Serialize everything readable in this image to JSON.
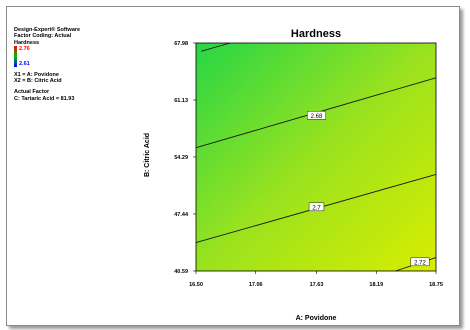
{
  "legend": {
    "lines": [
      "Design-Expert® Software",
      "Factor Coding: Actual",
      "Hardness"
    ],
    "high": "2.76",
    "low": "2.61",
    "factors": [
      "X1 = A: Povidone",
      "X2 = B: Citric Acid"
    ],
    "actual_title": "Actual Factor",
    "actual_value": "C: Tartaric Acid = 81.93"
  },
  "colors": {
    "top_left": "#26d646",
    "bottom_right": "#d9ed00",
    "mid": "#9ae21e"
  },
  "chart_data": {
    "type": "contour",
    "title": "Hardness",
    "xlabel": "A: Povidone",
    "ylabel": "B: Citric Acid",
    "xlim": [
      16.5,
      18.75
    ],
    "ylim": [
      40.59,
      67.98
    ],
    "x_ticks": [
      "16.50",
      "17.06",
      "17.63",
      "18.19",
      "18.75"
    ],
    "y_ticks": [
      "40.59",
      "47.44",
      "54.29",
      "61.13",
      "67.98"
    ],
    "x_tick_values": [
      16.5,
      17.06,
      17.63,
      18.19,
      18.75
    ],
    "y_tick_values": [
      40.59,
      47.44,
      54.29,
      61.13,
      67.98
    ],
    "contours": [
      {
        "label": "2.68",
        "label_at": [
          17.63,
          59.3
        ],
        "points": [
          [
            16.5,
            55.4
          ],
          [
            18.75,
            63.8
          ]
        ]
      },
      {
        "label": "2.7",
        "label_at": [
          17.63,
          48.3
        ],
        "points": [
          [
            16.5,
            44.0
          ],
          [
            18.75,
            52.2
          ]
        ]
      },
      {
        "label": "2.72",
        "label_at": [
          18.6,
          41.7
        ],
        "points": [
          [
            18.37,
            40.59
          ],
          [
            18.75,
            42.2
          ]
        ]
      },
      {
        "label": "",
        "label_at": null,
        "points": [
          [
            16.55,
            67.0
          ],
          [
            16.82,
            67.98
          ]
        ]
      }
    ]
  }
}
